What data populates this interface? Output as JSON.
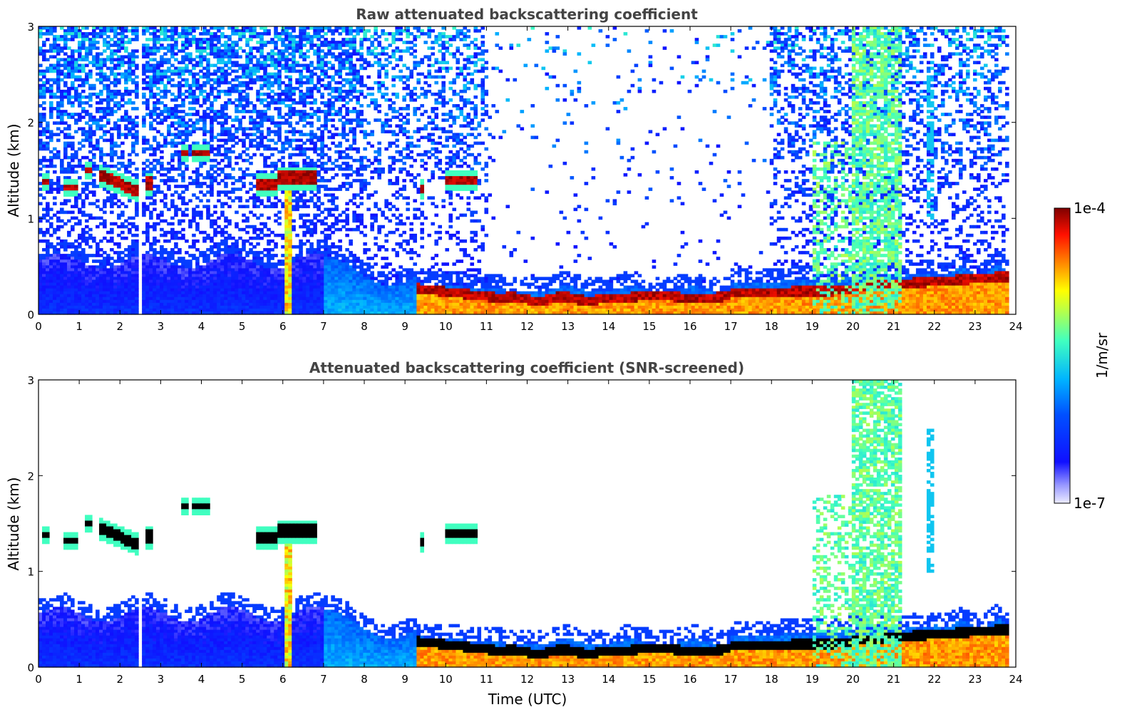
{
  "figure": {
    "colorbar_label": "1/m/sr",
    "colorbar_max_label": "1e-4",
    "colorbar_min_label": "1e-7",
    "xlabel": "Time (UTC)"
  },
  "chart_data": [
    {
      "type": "heatmap",
      "title": "Raw attenuated backscattering coefficient",
      "xlabel": "",
      "ylabel": "Altitude (km)",
      "xlim": [
        0,
        24
      ],
      "ylim": [
        0,
        3
      ],
      "xticks": [
        "0",
        "1",
        "2",
        "3",
        "4",
        "5",
        "6",
        "7",
        "8",
        "9",
        "10",
        "11",
        "12",
        "13",
        "14",
        "15",
        "16",
        "17",
        "18",
        "19",
        "20",
        "21",
        "22",
        "23",
        "24"
      ],
      "yticks": [
        "0",
        "1",
        "2",
        "3"
      ],
      "colorscale": "jet",
      "color_range": [
        "1e-7",
        "1e-4"
      ],
      "log_scale_color": true,
      "data_gap_hours": [
        2.45,
        2.55
      ],
      "features": [
        {
          "name": "boundary layer aerosol",
          "x": [
            0,
            24
          ],
          "top_km": 0.5,
          "level": 0.25
        },
        {
          "name": "cloud layer",
          "x": [
            0,
            0.9
          ],
          "alt_km": 1.35,
          "level": 1.0
        },
        {
          "name": "cloud layer",
          "x": [
            1.5,
            2.5
          ],
          "alt_km": 1.45,
          "level": 1.0
        },
        {
          "name": "cloud layer",
          "x": [
            3.5,
            4.2
          ],
          "alt_km": 1.68,
          "level": 1.0
        },
        {
          "name": "cloud layer",
          "x": [
            5.3,
            6.8
          ],
          "alt_km": 1.4,
          "level": 1.0
        },
        {
          "name": "cloud layer",
          "x": [
            10.0,
            10.8
          ],
          "alt_km": 1.38,
          "level": 1.0
        },
        {
          "name": "low cloud / aerosol top",
          "x": [
            9.3,
            24
          ],
          "alt_km": 0.2,
          "level": 1.0
        },
        {
          "name": "precipitation streak",
          "x": [
            6.0,
            6.2
          ],
          "alt_km": [
            0,
            1.3
          ],
          "level": 0.8
        },
        {
          "name": "convective plume",
          "x": [
            19.0,
            21.2
          ],
          "alt_km": [
            0.3,
            3.0
          ],
          "level": 0.6
        }
      ]
    },
    {
      "type": "heatmap",
      "title": "Attenuated backscattering coefficient (SNR-screened)",
      "xlabel": "Time (UTC)",
      "ylabel": "Altitude (km)",
      "xlim": [
        0,
        24
      ],
      "ylim": [
        0,
        3
      ],
      "xticks": [
        "0",
        "1",
        "2",
        "3",
        "4",
        "5",
        "6",
        "7",
        "8",
        "9",
        "10",
        "11",
        "12",
        "13",
        "14",
        "15",
        "16",
        "17",
        "18",
        "19",
        "20",
        "21",
        "22",
        "23",
        "24"
      ],
      "yticks": [
        "0",
        "1",
        "2",
        "3"
      ],
      "colorscale": "jet",
      "color_range": [
        "1e-7",
        "1e-4"
      ],
      "log_scale_color": true,
      "screened": true
    }
  ],
  "colors": {
    "colormap": [
      "#e8e8ff",
      "#0000ff",
      "#00aaff",
      "#40ffc0",
      "#ffff00",
      "#ff7f00",
      "#ff0000",
      "#7f0000"
    ],
    "title": "#444444",
    "axes": "#000000",
    "background": "#ffffff"
  }
}
